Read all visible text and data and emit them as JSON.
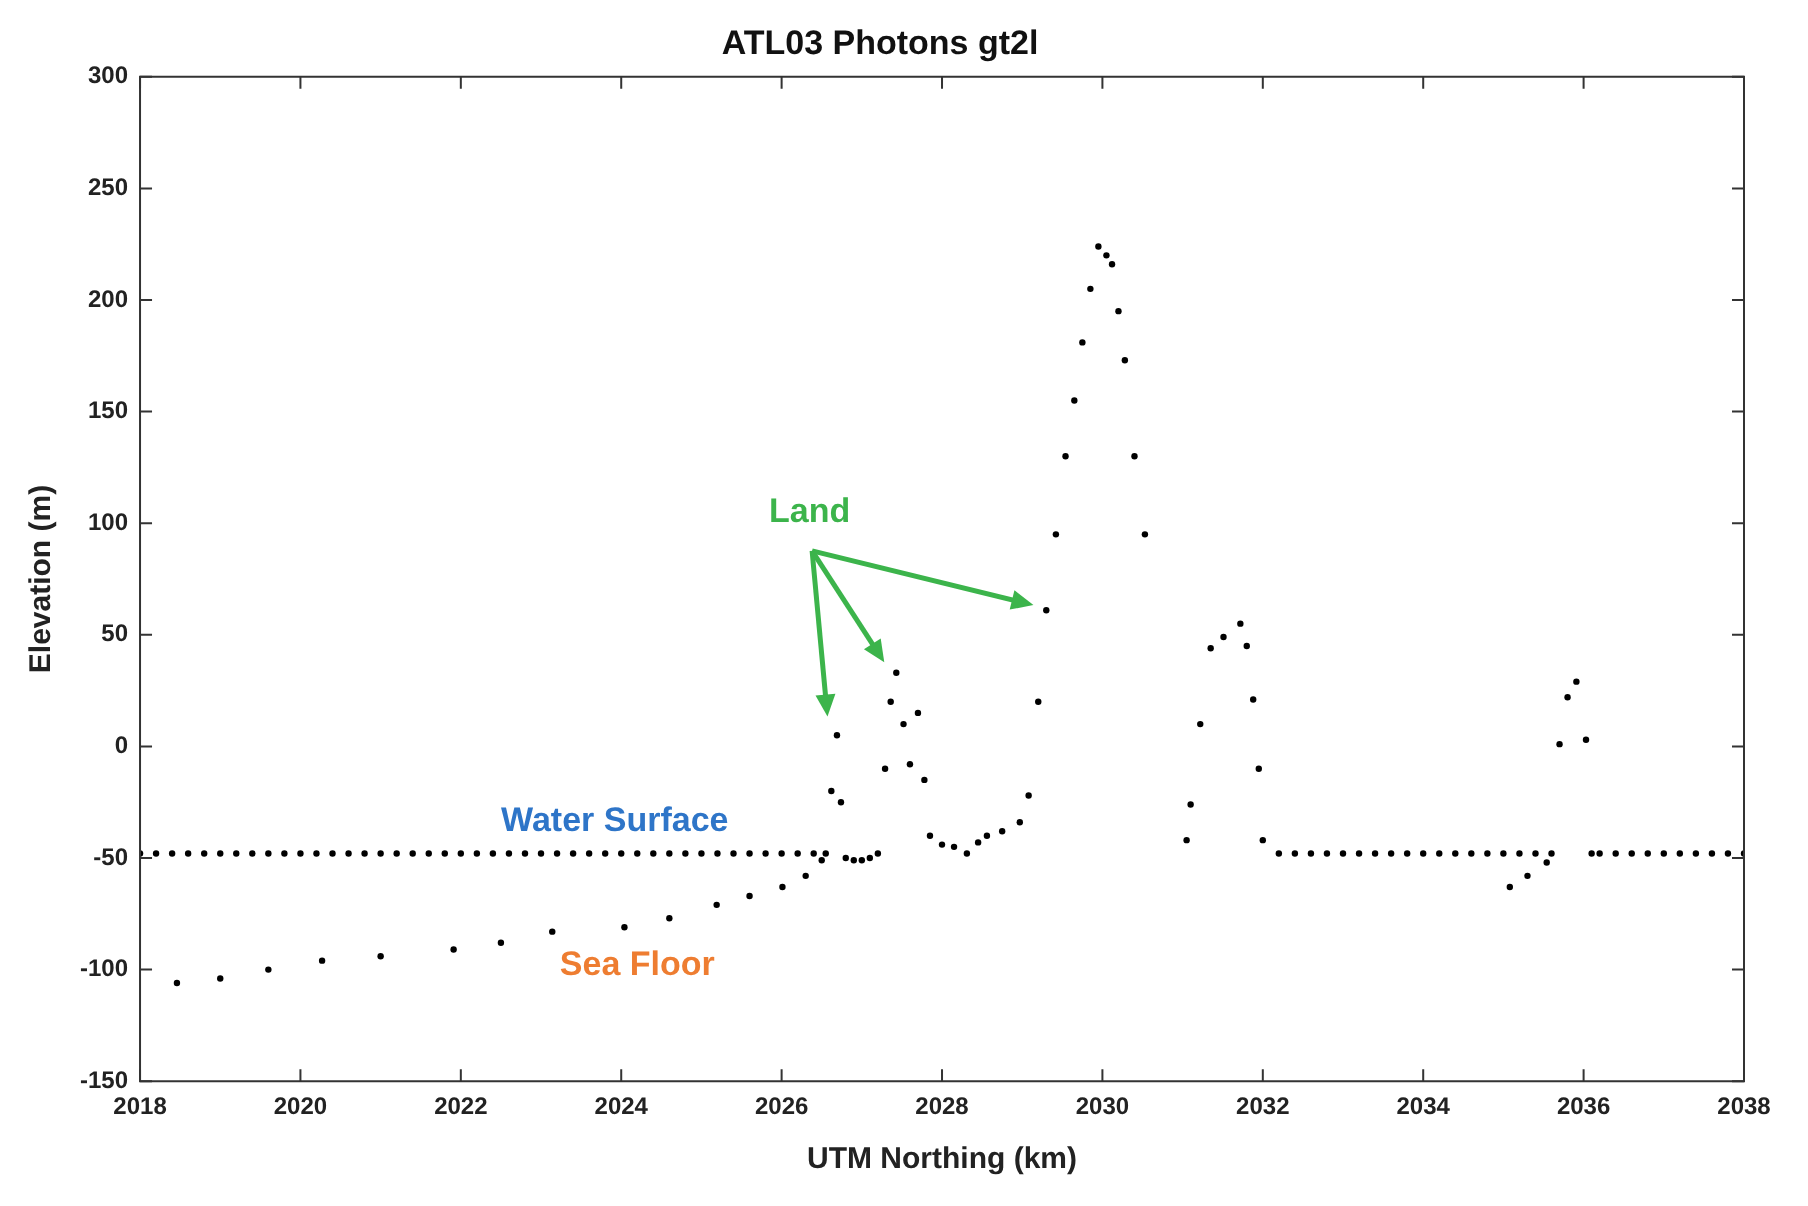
{
  "chart_data": {
    "type": "scatter",
    "title": "ATL03 Photons gt2l",
    "xlabel": "UTM Northing (km)",
    "ylabel": "Elevation (m)",
    "xlim": [
      2018,
      2038
    ],
    "xticks": [
      2018,
      2020,
      2022,
      2024,
      2026,
      2028,
      2030,
      2032,
      2034,
      2036,
      2038
    ],
    "ylim": [
      -150,
      300
    ],
    "yticks": [
      -150,
      -100,
      -50,
      0,
      50,
      100,
      150,
      200,
      250,
      300
    ],
    "grid": false,
    "legend": false,
    "marker": "circle",
    "series": [
      {
        "color": "#000000",
        "x": [
          2018.0,
          2018.2,
          2018.4,
          2018.6,
          2018.8,
          2019.0,
          2019.2,
          2019.4,
          2019.6,
          2019.8,
          2020.0,
          2020.2,
          2020.4,
          2020.6,
          2020.8,
          2021.0,
          2021.2,
          2021.4,
          2021.6,
          2021.8,
          2022.0,
          2022.2,
          2022.4,
          2022.6,
          2022.8,
          2023.0,
          2023.2,
          2023.4,
          2023.6,
          2023.8,
          2024.0,
          2024.2,
          2024.4,
          2024.6,
          2024.8,
          2025.0,
          2025.2,
          2025.4,
          2025.6,
          2025.8,
          2026.0,
          2026.2,
          2026.4,
          2026.55,
          2026.62,
          2026.69,
          2026.74,
          2026.8,
          2026.9,
          2027.0,
          2027.1,
          2027.2,
          2027.29,
          2027.36,
          2027.43,
          2027.52,
          2027.6,
          2027.7,
          2027.78,
          2027.85,
          2028.0,
          2028.15,
          2028.31,
          2028.45,
          2028.56,
          2028.75,
          2028.97,
          2029.08,
          2029.2,
          2029.3,
          2029.42,
          2029.54,
          2029.65,
          2029.75,
          2029.85,
          2029.95,
          2030.05,
          2030.12,
          2030.2,
          2030.28,
          2030.4,
          2030.53,
          2031.05,
          2031.1,
          2031.22,
          2031.35,
          2031.51,
          2031.72,
          2031.8,
          2031.88,
          2031.95,
          2032.0,
          2032.2,
          2032.4,
          2032.6,
          2032.8,
          2033.0,
          2033.2,
          2033.4,
          2033.6,
          2033.8,
          2034.0,
          2034.2,
          2034.4,
          2034.6,
          2034.8,
          2035.0,
          2035.2,
          2035.4,
          2035.6,
          2035.7,
          2035.8,
          2035.91,
          2036.03,
          2036.1,
          2036.2,
          2036.4,
          2036.6,
          2036.8,
          2037.0,
          2037.2,
          2037.4,
          2037.6,
          2037.8,
          2038.0
        ],
        "values": [
          -48,
          -48,
          -48,
          -48,
          -48,
          -48,
          -48,
          -48,
          -48,
          -48,
          -48,
          -48,
          -48,
          -48,
          -48,
          -48,
          -48,
          -48,
          -48,
          -48,
          -48,
          -48,
          -48,
          -48,
          -48,
          -48,
          -48,
          -48,
          -48,
          -48,
          -48,
          -48,
          -48,
          -48,
          -48,
          -48,
          -48,
          -48,
          -48,
          -48,
          -48,
          -48,
          -48,
          -48,
          -20,
          5,
          -25,
          -50,
          -51,
          -51,
          -50,
          -48,
          -10,
          20,
          33,
          10,
          -8,
          15,
          -15,
          -40,
          -44,
          -45,
          -48,
          -43,
          -40,
          -38,
          -34,
          -22,
          20,
          61,
          95,
          130,
          155,
          181,
          205,
          224,
          220,
          216,
          195,
          173,
          130,
          95,
          -42,
          -26,
          10,
          44,
          49,
          55,
          45,
          21,
          -10,
          -42,
          -48,
          -48,
          -48,
          -48,
          -48,
          -48,
          -48,
          -48,
          -48,
          -48,
          -48,
          -48,
          -48,
          -48,
          -48,
          -48,
          -48,
          -48,
          1,
          22,
          29,
          3,
          -48,
          -48,
          -48,
          -48,
          -48,
          -48,
          -48,
          -48,
          -48,
          -48,
          -48
        ]
      },
      {
        "color": "#000000",
        "x": [
          2018.46,
          2019.0,
          2019.6,
          2020.27,
          2021.0,
          2021.91,
          2022.5,
          2023.14,
          2024.04,
          2024.6,
          2025.19,
          2025.6,
          2026.01,
          2026.3,
          2026.5,
          2035.08,
          2035.3,
          2035.54
        ],
        "values": [
          -106,
          -104,
          -100,
          -96,
          -94,
          -91,
          -88,
          -83,
          -81,
          -77,
          -71,
          -67,
          -63,
          -58,
          -51,
          -63,
          -58,
          -52
        ]
      }
    ],
    "annotations": [
      "Water Surface",
      "Sea Floor",
      "Land"
    ]
  }
}
